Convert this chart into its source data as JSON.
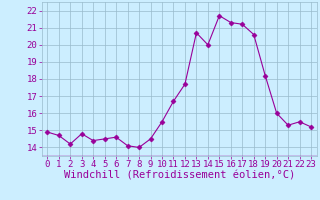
{
  "x": [
    0,
    1,
    2,
    3,
    4,
    5,
    6,
    7,
    8,
    9,
    10,
    11,
    12,
    13,
    14,
    15,
    16,
    17,
    18,
    19,
    20,
    21,
    22,
    23
  ],
  "y": [
    14.9,
    14.7,
    14.2,
    14.8,
    14.4,
    14.5,
    14.6,
    14.1,
    14.0,
    14.5,
    15.5,
    16.7,
    17.7,
    20.7,
    20.0,
    21.7,
    21.3,
    21.2,
    20.6,
    18.2,
    16.0,
    15.3,
    15.5,
    15.2
  ],
  "line_color": "#990099",
  "marker": "D",
  "marker_size": 2.5,
  "bg_color": "#cceeff",
  "grid_color": "#99bbcc",
  "xlabel": "Windchill (Refroidissement éolien,°C)",
  "xlabel_color": "#990099",
  "xlabel_fontsize": 7.5,
  "tick_color": "#990099",
  "tick_fontsize": 6.5,
  "ylim": [
    13.5,
    22.5
  ],
  "yticks": [
    14,
    15,
    16,
    17,
    18,
    19,
    20,
    21,
    22
  ],
  "xlim": [
    -0.5,
    23.5
  ],
  "xticks": [
    0,
    1,
    2,
    3,
    4,
    5,
    6,
    7,
    8,
    9,
    10,
    11,
    12,
    13,
    14,
    15,
    16,
    17,
    18,
    19,
    20,
    21,
    22,
    23
  ]
}
